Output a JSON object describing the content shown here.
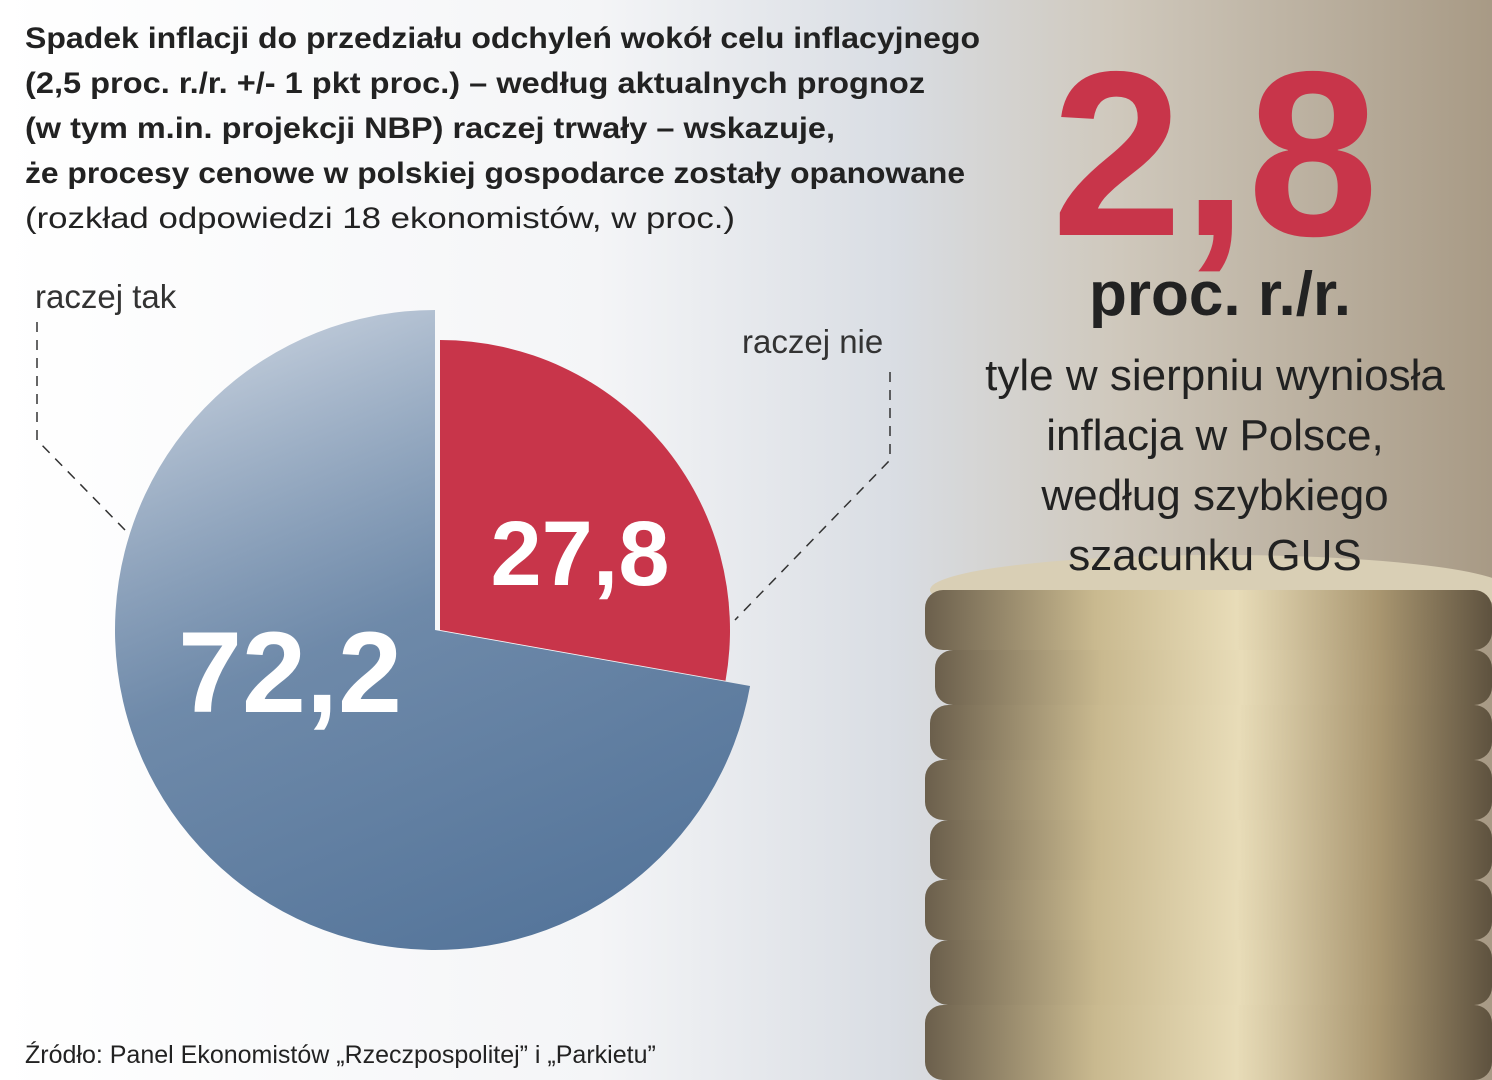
{
  "chart_data": {
    "type": "pie",
    "title": [
      "Spadek inflacji do przedziału odchyleń wokół celu inflacyjnego",
      "(2,5 proc. r./r. +/- 1 pkt proc.) – według aktualnych prognoz",
      "(w tym m.in. projekcji NBP) raczej trwały – wskazuje,",
      "że procesy cenowe w polskiej gospodarce zostały opanowane"
    ],
    "subtitle": "(rozkład odpowiedzi 18 ekonomistów, w proc.)",
    "categories": [
      "raczej nie",
      "raczej tak"
    ],
    "values": [
      27.8,
      72.2
    ],
    "value_labels": [
      "27,8",
      "72,2"
    ],
    "colors": [
      "#c8354a",
      "#56769b"
    ]
  },
  "callout": {
    "value": "2,8",
    "unit": "proc. r./r.",
    "text": [
      "tyle w sierpniu wyniosła",
      "inflacja w Polsce,",
      "według szybkiego",
      "szacunku GUS"
    ]
  },
  "source": "Źródło: Panel Ekonomistów „Rzeczpospolitej” i „Parkietu”"
}
